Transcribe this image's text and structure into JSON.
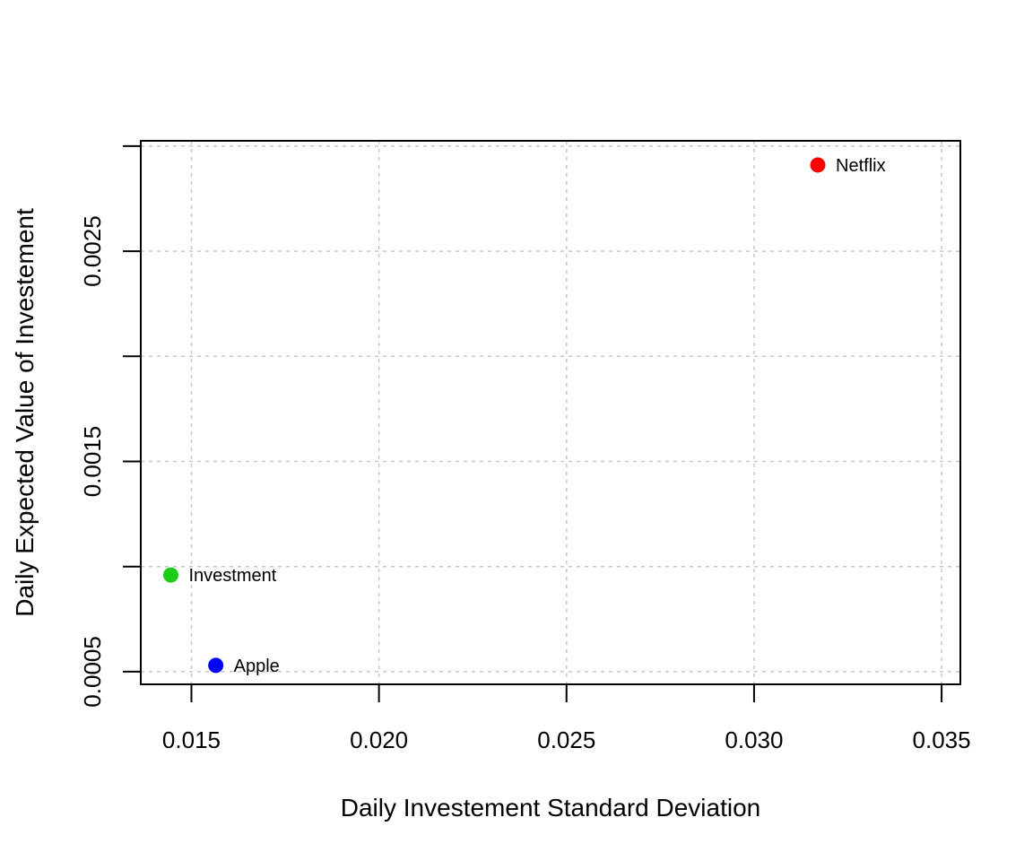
{
  "chart_data": {
    "type": "scatter",
    "title": "",
    "xlabel": "Daily Investement Standard Deviation",
    "ylabel": "Daily Expected Value of Investement",
    "xlim": [
      0.01365,
      0.0355
    ],
    "ylim": [
      0.00044,
      0.003025
    ],
    "x_ticks": [
      0.015,
      0.02,
      0.025,
      0.03,
      0.035
    ],
    "x_tick_labels": [
      "0.015",
      "0.020",
      "0.025",
      "0.030",
      "0.035"
    ],
    "y_ticks": [
      0.0005,
      0.001,
      0.0015,
      0.002,
      0.0025,
      0.003
    ],
    "y_tick_labels": [
      "0.0005",
      "",
      "0.0015",
      "",
      "0.0025",
      ""
    ],
    "grid": true,
    "points": [
      {
        "label": "Netflix",
        "x": 0.0317,
        "y": 0.00291,
        "color": "#ff0000"
      },
      {
        "label": "Investment",
        "x": 0.01445,
        "y": 0.00096,
        "color": "#1ccc14"
      },
      {
        "label": "Apple",
        "x": 0.01565,
        "y": 0.00053,
        "color": "#0000ff"
      }
    ]
  }
}
